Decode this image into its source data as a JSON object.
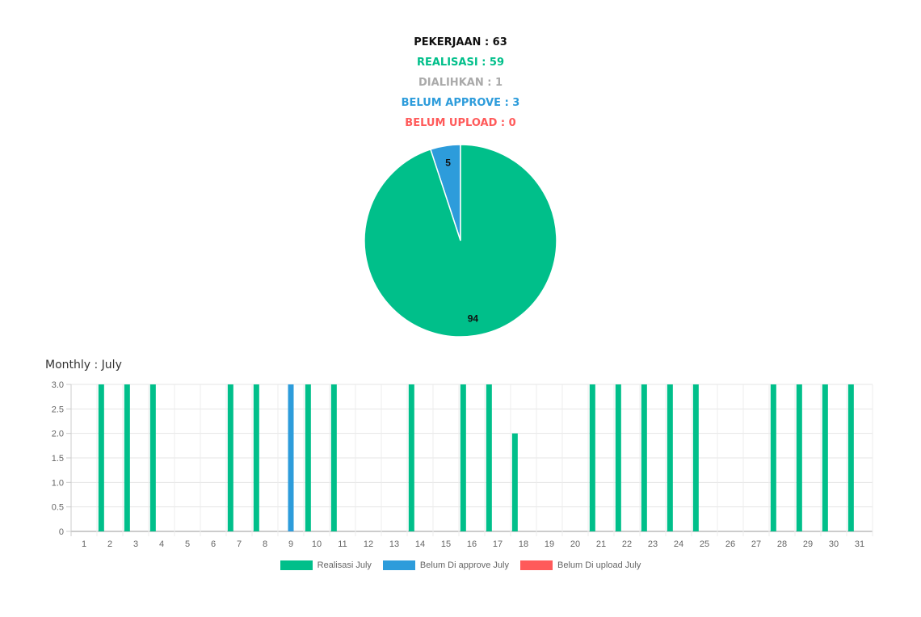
{
  "summary": {
    "pekerjaan": "PEKERJAAN : 63",
    "realisasi": "REALISASI : 59",
    "dialihkan": "DIALIHKAN : 1",
    "belum_approve": "BELUM APPROVE : 3",
    "belum_upload": "BELUM UPLOAD : 0"
  },
  "colors": {
    "green": "#00bf8a",
    "blue": "#2d9cdb",
    "red": "#ff5a5a",
    "gray": "#aaaaaa",
    "black": "#111111"
  },
  "monthly_title": "Monthly : July",
  "chart_data": [
    {
      "type": "pie",
      "labels": [
        "Realisasi",
        "Belum Di approve"
      ],
      "values": [
        94,
        5
      ],
      "colors": [
        "#00bf8a",
        "#2d9cdb"
      ]
    },
    {
      "type": "bar",
      "categories": [
        "1",
        "2",
        "3",
        "4",
        "5",
        "6",
        "7",
        "8",
        "9",
        "10",
        "11",
        "12",
        "13",
        "14",
        "15",
        "16",
        "17",
        "18",
        "19",
        "20",
        "21",
        "22",
        "23",
        "24",
        "25",
        "26",
        "27",
        "28",
        "29",
        "30",
        "31"
      ],
      "series": [
        {
          "name": "Realisasi July",
          "color": "#00bf8a",
          "values": [
            0,
            3,
            3,
            3,
            0,
            0,
            3,
            3,
            0,
            3,
            3,
            0,
            0,
            3,
            0,
            3,
            3,
            2,
            0,
            0,
            3,
            3,
            3,
            3,
            3,
            0,
            0,
            3,
            3,
            3,
            3
          ]
        },
        {
          "name": "Belum Di approve July",
          "color": "#2d9cdb",
          "values": [
            0,
            0,
            0,
            0,
            0,
            0,
            0,
            0,
            3,
            0,
            0,
            0,
            0,
            0,
            0,
            0,
            0,
            0,
            0,
            0,
            0,
            0,
            0,
            0,
            0,
            0,
            0,
            0,
            0,
            0,
            0
          ]
        },
        {
          "name": "Belum Di upload July",
          "color": "#ff5a5a",
          "values": [
            0,
            0,
            0,
            0,
            0,
            0,
            0,
            0,
            0,
            0,
            0,
            0,
            0,
            0,
            0,
            0,
            0,
            0,
            0,
            0,
            0,
            0,
            0,
            0,
            0,
            0,
            0,
            0,
            0,
            0,
            0
          ]
        }
      ],
      "yticks": [
        "0",
        "0.5",
        "1.0",
        "1.5",
        "2.0",
        "2.5",
        "3.0"
      ],
      "ylim": [
        0,
        3
      ],
      "grid": true,
      "legend": "bottom"
    }
  ]
}
